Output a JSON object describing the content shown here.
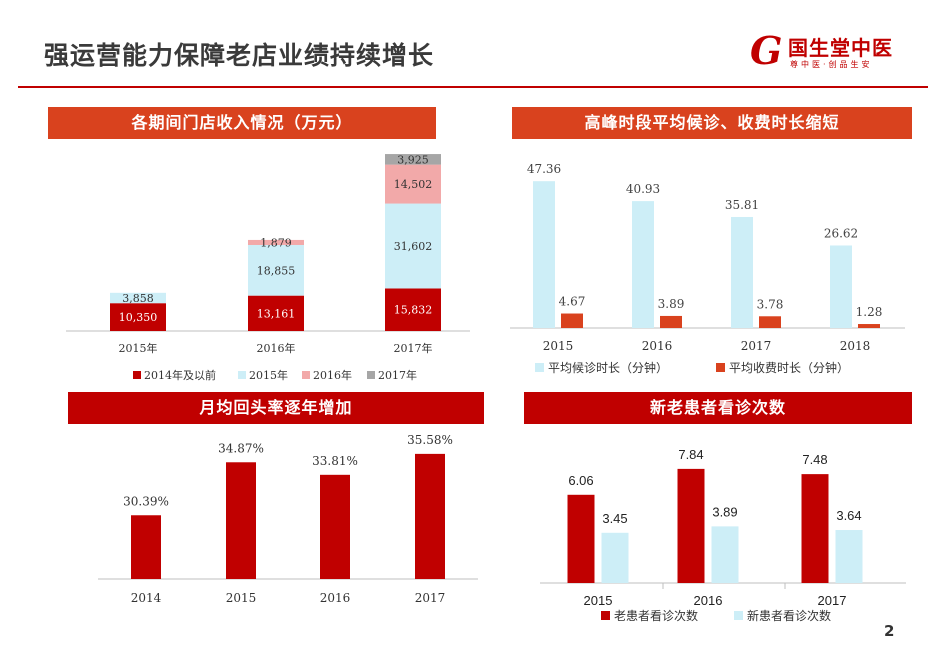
{
  "header": {
    "title": "强运营能力保障老店业绩持续增长",
    "logo_letter": "G",
    "logo_name": "国生堂中医",
    "logo_slogan": "尊中医·创品生安"
  },
  "page_number": "2",
  "colors": {
    "dark_red": "#c00000",
    "orange_red": "#d9421e",
    "light_blue": "#cdeef7",
    "pink": "#f2a9a9",
    "gray": "#a6a6a6"
  },
  "chart_data": [
    {
      "type": "bar",
      "stacked": true,
      "title": "各期间门店收入情况（万元）",
      "categories": [
        "2015年",
        "2016年",
        "2017年"
      ],
      "series": [
        {
          "name": "2014年及以前",
          "values": [
            10350,
            13161,
            15832
          ],
          "labels": [
            "10,350",
            "13,161",
            "15,832"
          ],
          "color": "#c00000"
        },
        {
          "name": "2015年",
          "values": [
            3858,
            18855,
            31602
          ],
          "labels": [
            "3,858",
            "18,855",
            "31,602"
          ],
          "color": "#cdeef7"
        },
        {
          "name": "2016年",
          "values": [
            0,
            1879,
            14502
          ],
          "labels": [
            "",
            "1,879",
            "14,502"
          ],
          "color": "#f2a9a9"
        },
        {
          "name": "2017年",
          "values": [
            0,
            0,
            3925
          ],
          "labels": [
            "",
            "",
            "3,925"
          ],
          "color": "#a6a6a6"
        }
      ],
      "legend": "bottom",
      "grid": false,
      "ylim": [
        0,
        67000
      ]
    },
    {
      "type": "bar",
      "title": "高峰时段平均候诊、收费时长缩短",
      "categories": [
        "2015",
        "2016",
        "2017",
        "2018"
      ],
      "series": [
        {
          "name": "平均候诊时长（分钟）",
          "values": [
            47.36,
            40.93,
            35.81,
            26.62
          ],
          "labels": [
            "47.36",
            "40.93",
            "35.81",
            "26.62"
          ],
          "color": "#cdeef7"
        },
        {
          "name": "平均收费时长（分钟）",
          "values": [
            4.67,
            3.89,
            3.78,
            1.28
          ],
          "labels": [
            "4.67",
            "3.89",
            "3.78",
            "1.28"
          ],
          "color": "#d9421e"
        }
      ],
      "legend": "bottom",
      "grid": false,
      "ylim": [
        0,
        50
      ]
    },
    {
      "type": "bar",
      "title": "月均回头率逐年增加",
      "categories": [
        "2014",
        "2015",
        "2016",
        "2017"
      ],
      "series": [
        {
          "name": "",
          "values": [
            30.39,
            34.87,
            33.81,
            35.58
          ],
          "labels": [
            "30.39%",
            "34.87%",
            "33.81%",
            "35.58%"
          ],
          "color": "#c00000"
        }
      ],
      "legend": "none",
      "grid": false,
      "ylim": [
        25,
        36.5
      ]
    },
    {
      "type": "bar",
      "title": "新老患者看诊次数",
      "categories": [
        "2015",
        "2016",
        "2017"
      ],
      "series": [
        {
          "name": "老患者看诊次数",
          "values": [
            6.06,
            7.84,
            7.48
          ],
          "labels": [
            "6.06",
            "7.84",
            "7.48"
          ],
          "color": "#c00000"
        },
        {
          "name": "新患者看诊次数",
          "values": [
            3.45,
            3.89,
            3.64
          ],
          "labels": [
            "3.45",
            "3.89",
            "3.64"
          ],
          "color": "#cdeef7"
        }
      ],
      "legend": "bottom",
      "grid": false,
      "ylim": [
        0,
        9
      ]
    }
  ]
}
